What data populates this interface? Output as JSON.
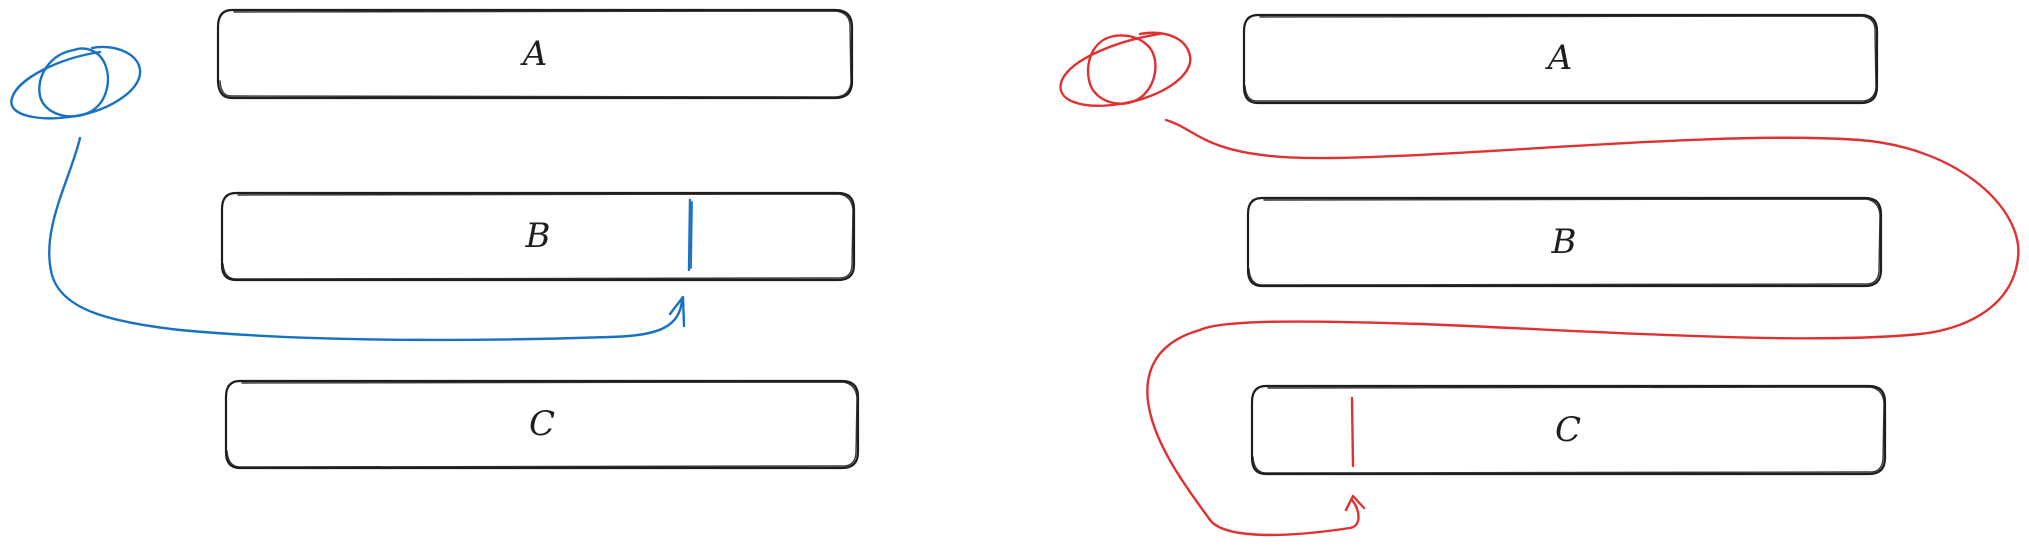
{
  "colors": {
    "ink": "#1e1e1e",
    "blue": "#1971c2",
    "red": "#e03131",
    "background": "#ffffff"
  },
  "left_panel": {
    "boxes": [
      {
        "label": "A"
      },
      {
        "label": "B"
      },
      {
        "label": "C"
      }
    ]
  },
  "right_panel": {
    "boxes": [
      {
        "label": "A"
      },
      {
        "label": "B"
      },
      {
        "label": "C"
      }
    ]
  }
}
